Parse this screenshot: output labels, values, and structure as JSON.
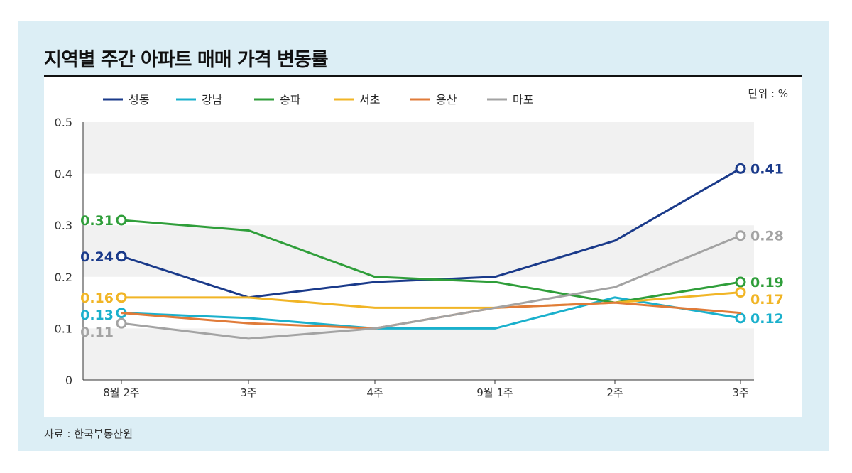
{
  "chart_data": {
    "type": "line",
    "title": "지역별 주간 아파트 매매 가격 변동률",
    "unit": "단위 : %",
    "source": "자료 : 한국부동산원",
    "categories": [
      "8월 2주",
      "3주",
      "4주",
      "9월 1주",
      "2주",
      "3주"
    ],
    "ylim": [
      0,
      0.5
    ],
    "yticks": [
      "0",
      "0.1",
      "0.2",
      "0.3",
      "0.4",
      "0.5"
    ],
    "legend": "top",
    "series": [
      {
        "name": "성동",
        "color": "#1a3a8a",
        "values": [
          0.24,
          0.16,
          0.19,
          0.2,
          0.27,
          0.41
        ],
        "start_label": "0.24",
        "end_label": "0.41"
      },
      {
        "name": "강남",
        "color": "#1ab0cc",
        "values": [
          0.13,
          0.12,
          0.1,
          0.1,
          0.16,
          0.12
        ],
        "start_label": "0.13",
        "end_label": "0.12"
      },
      {
        "name": "송파",
        "color": "#2f9e3a",
        "values": [
          0.31,
          0.29,
          0.2,
          0.19,
          0.15,
          0.19
        ],
        "start_label": "0.31",
        "end_label": "0.19"
      },
      {
        "name": "서초",
        "color": "#f1b526",
        "values": [
          0.16,
          0.16,
          0.14,
          0.14,
          0.15,
          0.17
        ],
        "start_label": "0.16",
        "end_label": "0.17"
      },
      {
        "name": "용산",
        "color": "#e07b39",
        "values": [
          0.13,
          0.11,
          0.1,
          0.14,
          0.15,
          0.13
        ]
      },
      {
        "name": "마포",
        "color": "#a3a3a3",
        "values": [
          0.11,
          0.08,
          0.1,
          0.14,
          0.18,
          0.28
        ],
        "start_label": "0.11",
        "end_label": "0.28"
      }
    ]
  }
}
